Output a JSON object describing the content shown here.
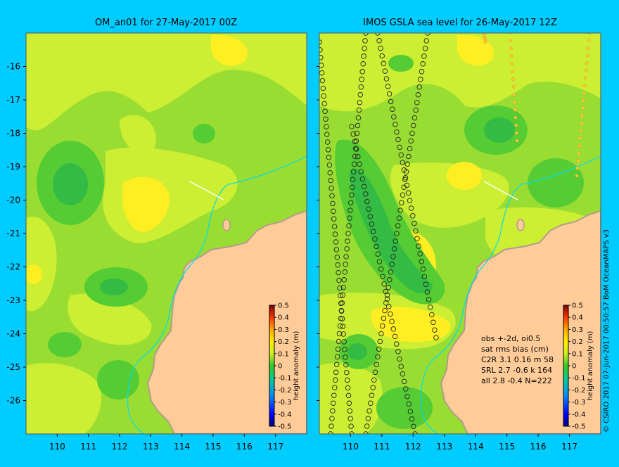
{
  "panels": [
    {
      "title": "OM_an01 for 27-May-2017 00Z",
      "x_ticks": [
        "110",
        "111",
        "112",
        "113",
        "114",
        "115",
        "116",
        "117"
      ],
      "y_ticks": [
        "-16",
        "-17",
        "-18",
        "-19",
        "-20",
        "-21",
        "-22",
        "-23",
        "-24",
        "-25",
        "-26"
      ]
    },
    {
      "title": "IMOS GSLA sea level  for 26-May-2017 12Z",
      "x_ticks": [
        "110",
        "111",
        "112",
        "113",
        "114",
        "115",
        "116",
        "117"
      ],
      "stats": {
        "header1": "obs +-2d, oi0.5",
        "header2": "sat rms bias (cm)",
        "rows": [
          "C2R   3.1  0.16  m 58",
          "SRL    2.7  -0.6  k 164",
          "all    2.8  -0.4  N=222"
        ]
      }
    }
  ],
  "colorbar": {
    "label": "height anomaly (m)",
    "ticks": [
      "0.5",
      "0.4",
      "0.3",
      "0.2",
      "0.1",
      "0",
      "-0.1",
      "-0.2",
      "-0.3",
      "-0.4",
      "-0.5"
    ],
    "range": [
      -0.5,
      0.5
    ],
    "colors": [
      "#00007f",
      "#0000ff",
      "#0077ff",
      "#00ccff",
      "#00c8a0",
      "#22bb22",
      "#77dd11",
      "#ccee22",
      "#ffee00",
      "#ffaa00",
      "#ff5500",
      "#cc0000",
      "#7f0000"
    ]
  },
  "credit": "© CSIRO 2017   07-Jun-2017 00:50:57 BoM OceanMAPS v3",
  "map": {
    "lon_range": [
      109,
      118
    ],
    "lat_range": [
      -27,
      -15
    ],
    "land_color": "#ffcc99",
    "coast_rock_color": "#b39b8a",
    "isobath_color": "#00ddee"
  }
}
